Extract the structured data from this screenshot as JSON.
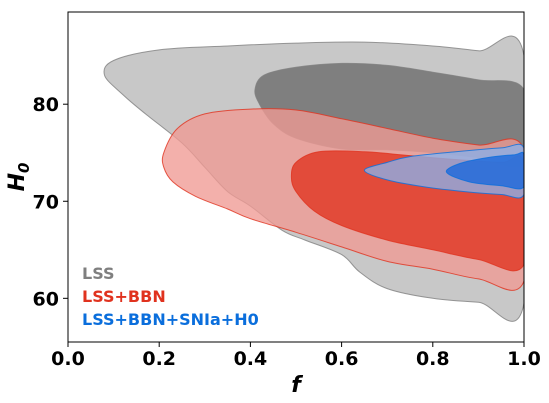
{
  "chart_data": {
    "type": "contour",
    "xlabel": "f",
    "ylabel_main": "H",
    "ylabel_sub": "0",
    "xlim": [
      0.0,
      1.0
    ],
    "ylim": [
      55.5,
      89.5
    ],
    "xticks": [
      0.0,
      0.2,
      0.4,
      0.6,
      0.8,
      1.0
    ],
    "xtick_labels": [
      "0.0",
      "0.2",
      "0.4",
      "0.6",
      "0.8",
      "1.0"
    ],
    "yticks": [
      60,
      70,
      80
    ],
    "ytick_labels": [
      "60",
      "70",
      "80"
    ],
    "grid": false,
    "legend_position": "bottom-left",
    "series": [
      {
        "name": "LSS",
        "color": "#7f7f7f",
        "contours": [
          {
            "level": "outer",
            "fill": "#c8c8c8",
            "points": [
              [
                0.08,
                83.0
              ],
              [
                0.1,
                84.5
              ],
              [
                0.2,
                85.6
              ],
              [
                0.35,
                86.0
              ],
              [
                0.5,
                86.3
              ],
              [
                0.65,
                86.4
              ],
              [
                0.8,
                86.0
              ],
              [
                0.9,
                85.5
              ],
              [
                1.0,
                85.0
              ],
              [
                1.0,
                59.5
              ],
              [
                0.9,
                59.6
              ],
              [
                0.8,
                60.0
              ],
              [
                0.7,
                61.0
              ],
              [
                0.64,
                62.7
              ],
              [
                0.6,
                64.5
              ],
              [
                0.52,
                66.0
              ],
              [
                0.47,
                67.0
              ],
              [
                0.4,
                69.5
              ],
              [
                0.35,
                71.0
              ],
              [
                0.3,
                73.5
              ],
              [
                0.25,
                76.0
              ],
              [
                0.17,
                79.0
              ],
              [
                0.12,
                81.0
              ]
            ]
          },
          {
            "level": "inner",
            "fill": "#7f7f7f",
            "points": [
              [
                0.41,
                81.5
              ],
              [
                0.43,
                83.0
              ],
              [
                0.5,
                83.8
              ],
              [
                0.6,
                84.2
              ],
              [
                0.7,
                84.0
              ],
              [
                0.8,
                83.3
              ],
              [
                0.9,
                82.5
              ],
              [
                1.0,
                81.5
              ],
              [
                1.0,
                74.0
              ],
              [
                0.9,
                74.5
              ],
              [
                0.8,
                75.0
              ],
              [
                0.7,
                75.3
              ],
              [
                0.6,
                75.4
              ],
              [
                0.5,
                76.5
              ],
              [
                0.45,
                78.0
              ],
              [
                0.42,
                80.0
              ]
            ]
          }
        ]
      },
      {
        "name": "LSS+BBN",
        "color": "#e0321e",
        "contours": [
          {
            "level": "outer",
            "fill": "#f09a94",
            "points": [
              [
                0.21,
                75.0
              ],
              [
                0.24,
                77.5
              ],
              [
                0.3,
                79.0
              ],
              [
                0.4,
                79.5
              ],
              [
                0.5,
                79.4
              ],
              [
                0.6,
                78.5
              ],
              [
                0.7,
                77.5
              ],
              [
                0.8,
                76.5
              ],
              [
                0.9,
                75.8
              ],
              [
                1.0,
                75.3
              ],
              [
                1.0,
                61.8
              ],
              [
                0.9,
                62.0
              ],
              [
                0.8,
                63.0
              ],
              [
                0.7,
                63.8
              ],
              [
                0.6,
                65.3
              ],
              [
                0.5,
                66.8
              ],
              [
                0.4,
                68.2
              ],
              [
                0.35,
                69.2
              ],
              [
                0.28,
                70.5
              ],
              [
                0.23,
                72.0
              ],
              [
                0.21,
                73.5
              ]
            ]
          },
          {
            "level": "inner",
            "fill": "#e0321e",
            "points": [
              [
                0.49,
                72.5
              ],
              [
                0.5,
                74.0
              ],
              [
                0.55,
                75.1
              ],
              [
                0.65,
                75.1
              ],
              [
                0.75,
                74.7
              ],
              [
                0.85,
                74.3
              ],
              [
                0.95,
                74.0
              ],
              [
                1.0,
                73.9
              ],
              [
                1.0,
                63.5
              ],
              [
                0.9,
                64.0
              ],
              [
                0.8,
                65.0
              ],
              [
                0.7,
                66.0
              ],
              [
                0.6,
                67.5
              ],
              [
                0.54,
                69.0
              ],
              [
                0.5,
                71.0
              ]
            ]
          }
        ]
      },
      {
        "name": "LSS+BBN+SNIa+H0",
        "color": "#0a6edc",
        "contours": [
          {
            "level": "outer",
            "fill": "#8ab1eb",
            "points": [
              [
                0.65,
                73.2
              ],
              [
                0.7,
                74.0
              ],
              [
                0.75,
                74.6
              ],
              [
                0.85,
                75.1
              ],
              [
                0.95,
                75.5
              ],
              [
                1.0,
                75.5
              ],
              [
                1.0,
                70.7
              ],
              [
                0.95,
                70.7
              ],
              [
                0.87,
                71.0
              ],
              [
                0.78,
                71.5
              ],
              [
                0.7,
                72.2
              ]
            ]
          },
          {
            "level": "inner",
            "fill": "#1766dc",
            "points": [
              [
                0.83,
                73.0
              ],
              [
                0.86,
                73.9
              ],
              [
                0.92,
                74.5
              ],
              [
                0.98,
                74.8
              ],
              [
                1.0,
                74.8
              ],
              [
                1.0,
                71.5
              ],
              [
                0.95,
                71.6
              ],
              [
                0.88,
                72.0
              ]
            ]
          }
        ]
      }
    ]
  }
}
